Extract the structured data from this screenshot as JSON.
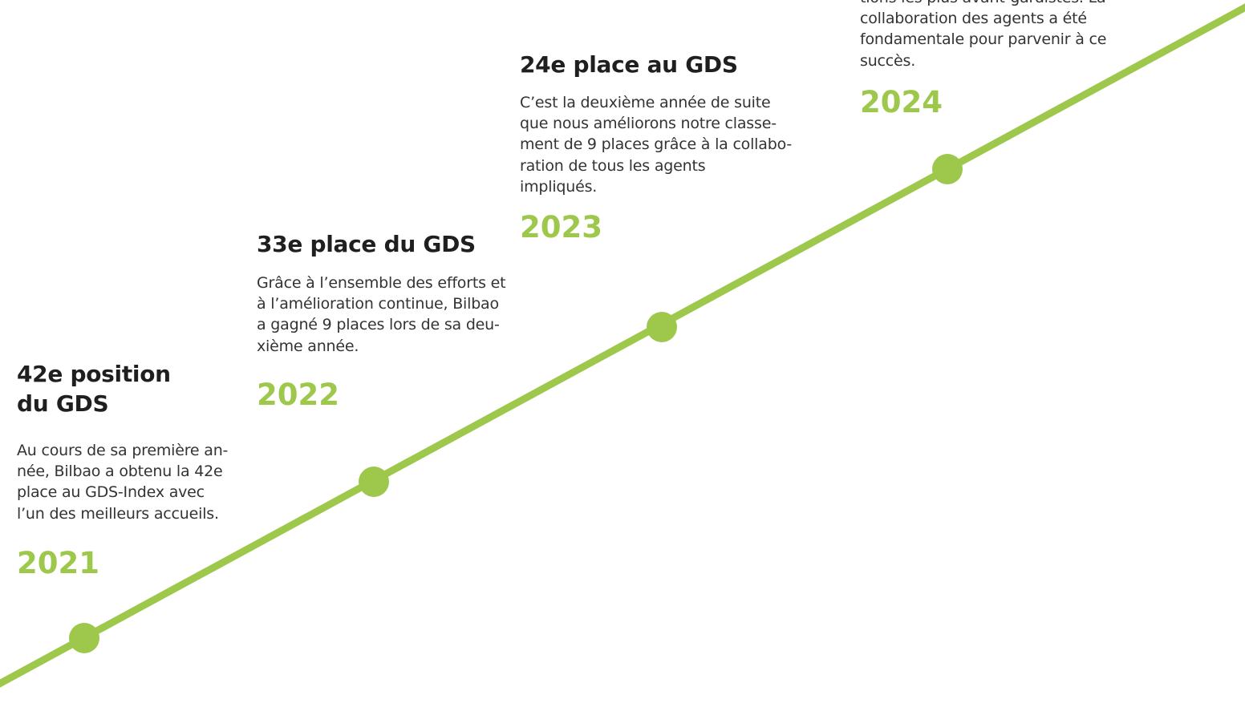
{
  "items": [
    {
      "title_lines": [
        "42e position",
        "du GDS"
      ],
      "text_lines": [
        "Au cours de sa première an-",
        "née, Bilbao a obtenu la 42e",
        "place au GDS-Index avec",
        "l’un des meilleurs accueils."
      ],
      "year": "2021"
    },
    {
      "title_lines": [
        "33e place du GDS"
      ],
      "text_lines": [
        "Grâce à l’ensemble des efforts et",
        "à l’amélioration continue, Bilbao",
        "a gagné 9 places lors de sa deu-",
        "xième année."
      ],
      "year": "2022"
    },
    {
      "title_lines": [
        "24e place au GDS"
      ],
      "text_lines": [
        "C’est la deuxième année de suite",
        "que nous améliorons notre classe-",
        "ment de 9 places grâce à la collabo-",
        "ration de tous les agents",
        "impliqués."
      ],
      "year": "2023"
    },
    {
      "title_lines": [],
      "text_lines": [
        "tions les plus avant-gardistes. La",
        "collaboration des agents a été",
        "fondamentale pour parvenir à ce",
        "succès."
      ],
      "year": "2024"
    }
  ]
}
